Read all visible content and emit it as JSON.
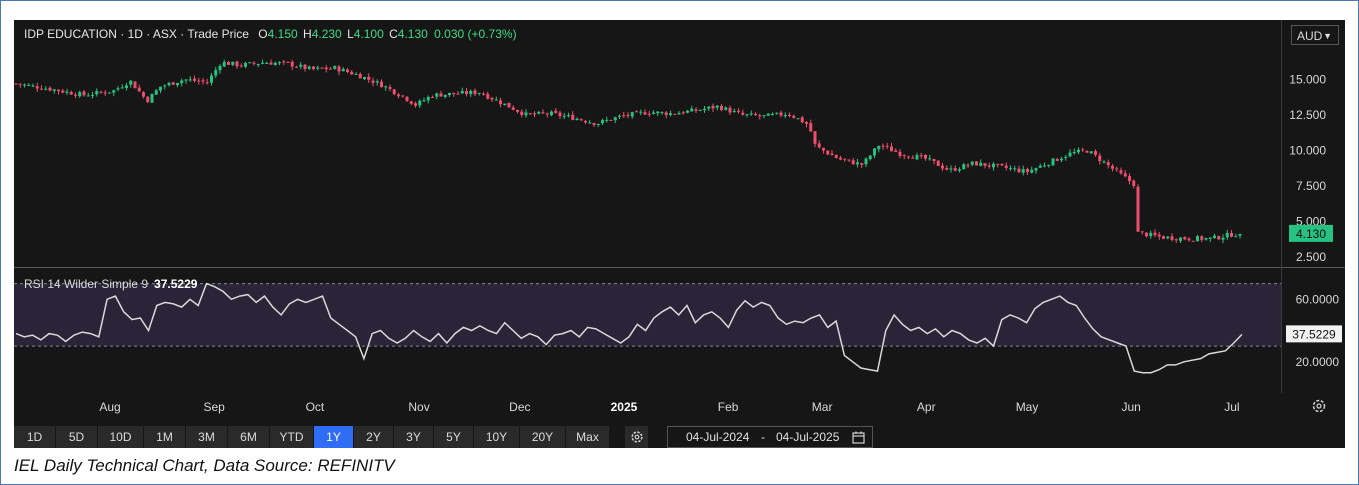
{
  "legend": {
    "symbol": "IDP EDUCATION · 1D · ASX · Trade Price",
    "o_label": "O",
    "o_val": "4.150",
    "h_label": "H",
    "h_val": "4.230",
    "l_label": "L",
    "l_val": "4.100",
    "c_label": "C",
    "c_val": "4.130",
    "change": "0.030 (+0.73%)"
  },
  "currency_button": "AUD",
  "last_price_label": "4.130",
  "rsi_legend": {
    "name": "RSI 14 Wilder Simple 9",
    "value": "37.5229"
  },
  "rsi_last_label": "37.5229",
  "timeframes": [
    "1D",
    "5D",
    "10D",
    "1M",
    "3M",
    "6M",
    "YTD",
    "1Y",
    "2Y",
    "3Y",
    "5Y",
    "10Y",
    "20Y",
    "Max"
  ],
  "active_timeframe": "1Y",
  "date_range": {
    "from": "04-Jul-2024",
    "sep": "-",
    "to": "04-Jul-2025"
  },
  "caption": "IEL Daily Technical Chart, Data Source: REFINITV",
  "colors": {
    "up": "#26c281",
    "down": "#ef4d6b",
    "rsi_line": "#d8d8d8",
    "rsi_band": "#2b2438",
    "active": "#2f6df5"
  },
  "icons": {
    "settings": "gear-icon",
    "calendar": "calendar-icon",
    "reset": "reset-axis-icon"
  },
  "chart_data": [
    {
      "type": "candlestick",
      "title": "IDP EDUCATION · 1D · ASX · Trade Price",
      "x_ticks": [
        "Aug",
        "Sep",
        "Oct",
        "Nov",
        "Dec",
        "2025",
        "Feb",
        "Mar",
        "Apr",
        "May",
        "Jun",
        "Jul"
      ],
      "y_ticks": [
        "15.000",
        "12.500",
        "10.000",
        "7.500",
        "5.000",
        "2.500"
      ],
      "ylim": [
        1.8,
        18.9
      ],
      "close_path": [
        {
          "date": "2024-07-04",
          "close": 14.7
        },
        {
          "date": "2024-07-15",
          "close": 14.3
        },
        {
          "date": "2024-07-24",
          "close": 13.9
        },
        {
          "date": "2024-08-02",
          "close": 14.2
        },
        {
          "date": "2024-08-07",
          "close": 14.9
        },
        {
          "date": "2024-08-12",
          "close": 13.5
        },
        {
          "date": "2024-08-16",
          "close": 14.5
        },
        {
          "date": "2024-08-23",
          "close": 15.0
        },
        {
          "date": "2024-08-30",
          "close": 14.8
        },
        {
          "date": "2024-09-03",
          "close": 16.2
        },
        {
          "date": "2024-09-09",
          "close": 16.0
        },
        {
          "date": "2024-09-16",
          "close": 16.2
        },
        {
          "date": "2024-09-23",
          "close": 16.1
        },
        {
          "date": "2024-09-30",
          "close": 15.7
        },
        {
          "date": "2024-10-07",
          "close": 15.8
        },
        {
          "date": "2024-10-14",
          "close": 15.3
        },
        {
          "date": "2024-10-21",
          "close": 14.6
        },
        {
          "date": "2024-10-28",
          "close": 13.7
        },
        {
          "date": "2024-10-31",
          "close": 13.2
        },
        {
          "date": "2024-11-05",
          "close": 13.9
        },
        {
          "date": "2024-11-12",
          "close": 14.0
        },
        {
          "date": "2024-11-19",
          "close": 14.1
        },
        {
          "date": "2024-11-26",
          "close": 13.3
        },
        {
          "date": "2024-12-03",
          "close": 12.5
        },
        {
          "date": "2024-12-10",
          "close": 12.6
        },
        {
          "date": "2024-12-17",
          "close": 12.3
        },
        {
          "date": "2024-12-24",
          "close": 11.9
        },
        {
          "date": "2024-12-31",
          "close": 12.4
        },
        {
          "date": "2025-01-08",
          "close": 12.7
        },
        {
          "date": "2025-01-15",
          "close": 12.6
        },
        {
          "date": "2025-01-22",
          "close": 12.8
        },
        {
          "date": "2025-01-29",
          "close": 13.1
        },
        {
          "date": "2025-02-05",
          "close": 12.5
        },
        {
          "date": "2025-02-12",
          "close": 12.4
        },
        {
          "date": "2025-02-19",
          "close": 12.6
        },
        {
          "date": "2025-02-25",
          "close": 11.8
        },
        {
          "date": "2025-02-27",
          "close": 10.3
        },
        {
          "date": "2025-03-06",
          "close": 9.4
        },
        {
          "date": "2025-03-13",
          "close": 9.0
        },
        {
          "date": "2025-03-18",
          "close": 10.4
        },
        {
          "date": "2025-03-24",
          "close": 9.8
        },
        {
          "date": "2025-04-01",
          "close": 9.4
        },
        {
          "date": "2025-04-08",
          "close": 8.6
        },
        {
          "date": "2025-04-15",
          "close": 9.1
        },
        {
          "date": "2025-04-24",
          "close": 8.8
        },
        {
          "date": "2025-05-01",
          "close": 8.5
        },
        {
          "date": "2025-05-08",
          "close": 9.2
        },
        {
          "date": "2025-05-14",
          "close": 9.8
        },
        {
          "date": "2025-05-19",
          "close": 10.0
        },
        {
          "date": "2025-05-26",
          "close": 8.8
        },
        {
          "date": "2025-06-02",
          "close": 7.6
        },
        {
          "date": "2025-06-03",
          "close": 4.2
        },
        {
          "date": "2025-06-10",
          "close": 3.9
        },
        {
          "date": "2025-06-18",
          "close": 3.8
        },
        {
          "date": "2025-06-25",
          "close": 3.8
        },
        {
          "date": "2025-07-01",
          "close": 4.1
        },
        {
          "date": "2025-07-04",
          "close": 4.13
        }
      ],
      "ohlc_last": {
        "open": 4.15,
        "high": 4.23,
        "low": 4.1,
        "close": 4.13,
        "change": 0.03,
        "change_pct": 0.73
      }
    },
    {
      "type": "line",
      "title": "RSI 14 Wilder Simple 9",
      "y_ticks": [
        "60.0000",
        "20.0000"
      ],
      "ylim": [
        0,
        80
      ],
      "band": [
        30,
        70
      ],
      "last": 37.5229,
      "rsi": [
        38,
        36,
        37,
        34,
        38,
        37,
        33,
        37,
        39,
        38,
        36,
        60,
        62,
        52,
        47,
        48,
        40,
        56,
        58,
        57,
        55,
        60,
        56,
        70,
        68,
        65,
        60,
        62,
        63,
        58,
        62,
        55,
        50,
        57,
        60,
        58,
        60,
        62,
        48,
        44,
        40,
        36,
        22,
        38,
        40,
        35,
        32,
        35,
        40,
        36,
        33,
        38,
        32,
        38,
        42,
        40,
        43,
        40,
        38,
        45,
        40,
        35,
        38,
        36,
        31,
        37,
        38,
        40,
        36,
        42,
        41,
        38,
        35,
        32,
        36,
        44,
        40,
        48,
        52,
        55,
        50,
        56,
        45,
        50,
        52,
        48,
        42,
        53,
        59,
        55,
        58,
        56,
        48,
        44,
        46,
        45,
        48,
        50,
        42,
        46,
        24,
        20,
        16,
        15,
        14,
        40,
        50,
        44,
        40,
        42,
        38,
        41,
        36,
        40,
        38,
        34,
        32,
        35,
        30,
        47,
        50,
        48,
        45,
        54,
        58,
        60,
        62,
        58,
        56,
        48,
        41,
        36,
        34,
        32,
        30,
        14,
        13,
        13,
        15,
        18,
        18,
        20,
        21,
        22,
        25,
        26,
        27,
        32,
        37.5
      ]
    }
  ]
}
